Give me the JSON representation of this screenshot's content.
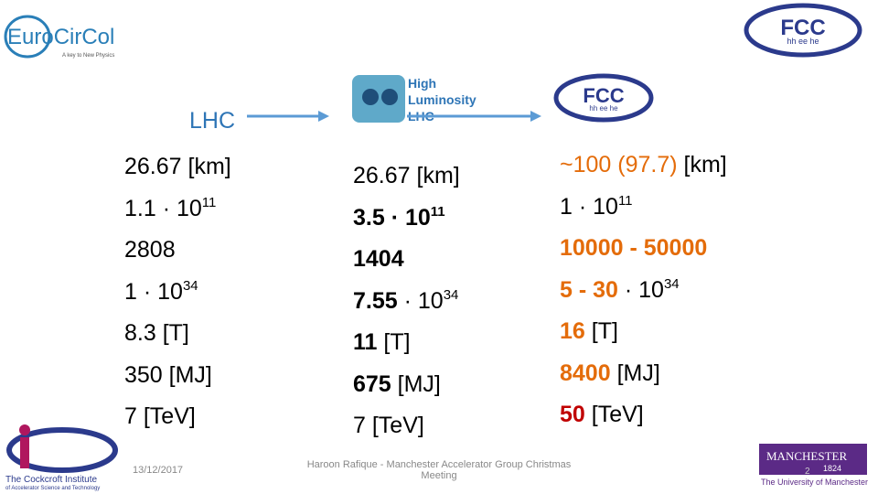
{
  "logos": {
    "eurocircol": {
      "name": "EuroCirCol",
      "tagline": "A key to New Physics"
    },
    "hl_lhc": {
      "lines": [
        "High",
        "Luminosity",
        "LHC"
      ]
    },
    "fcc_top": {
      "name": "FCC",
      "sub": "hh ee he"
    },
    "fcc_mid": {
      "name": "FCC",
      "sub": "hh ee he"
    },
    "cockcroft": {
      "name": "The Cockcroft Institute",
      "sub": "of Accelerator Science and Technology"
    },
    "manchester": {
      "name": "MANCHESTER",
      "year": "1824",
      "sub": "The University of Manchester"
    }
  },
  "columns": [
    {
      "heading": "LHC",
      "rows": [
        [
          {
            "text": "26.67 [km]"
          }
        ],
        [
          {
            "text": "1.1 · 10"
          },
          {
            "text": "11",
            "sup": true
          }
        ],
        [
          {
            "text": "2808"
          }
        ],
        [
          {
            "text": "1 · 10"
          },
          {
            "text": "34",
            "sup": true
          }
        ],
        [
          {
            "text": "8.3 [T]"
          }
        ],
        [
          {
            "text": "350 [MJ]"
          }
        ],
        [
          {
            "text": "7 [TeV]"
          }
        ]
      ]
    },
    {
      "rows": [
        [
          {
            "text": "26.67 [km]"
          }
        ],
        [
          {
            "text": "3.5 · 10",
            "bold": true
          },
          {
            "text": "11",
            "sup": true,
            "bold": true
          }
        ],
        [
          {
            "text": "1404",
            "bold": true
          }
        ],
        [
          {
            "text": "7.55",
            "bold": true
          },
          {
            "text": " · 10"
          },
          {
            "text": "34",
            "sup": true
          }
        ],
        [
          {
            "text": "11",
            "bold": true
          },
          {
            "text": " [T]"
          }
        ],
        [
          {
            "text": "675",
            "bold": true
          },
          {
            "text": " [MJ]"
          }
        ],
        [
          {
            "text": "7 [TeV]"
          }
        ]
      ]
    },
    {
      "rows": [
        [
          {
            "text": "~100 (97.7)",
            "color": "#e46c0a"
          },
          {
            "text": " [km]"
          }
        ],
        [
          {
            "text": "1 · 10"
          },
          {
            "text": "11",
            "sup": true
          }
        ],
        [
          {
            "text": "10000 - 50000",
            "color": "#e46c0a",
            "bold": true
          }
        ],
        [
          {
            "text": "5 - 30",
            "color": "#e46c0a",
            "bold": true
          },
          {
            "text": " · 10"
          },
          {
            "text": "34",
            "sup": true
          }
        ],
        [
          {
            "text": "16",
            "color": "#e46c0a",
            "bold": true
          },
          {
            "text": " [T]"
          }
        ],
        [
          {
            "text": "8400",
            "color": "#e46c0a",
            "bold": true
          },
          {
            "text": " [MJ]"
          }
        ],
        [
          {
            "text": "50",
            "color": "#c00000",
            "bold": true
          },
          {
            "text": " [TeV]"
          }
        ]
      ]
    }
  ],
  "footer": {
    "date": "13/12/2017",
    "presenter": "Haroon Rafique - Manchester Accelerator Group Christmas Meeting",
    "page": 2
  }
}
